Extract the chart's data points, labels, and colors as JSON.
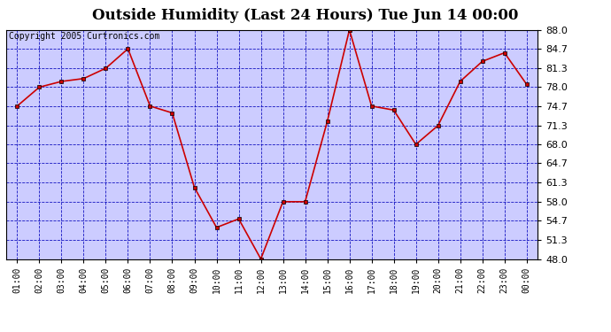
{
  "title": "Outside Humidity (Last 24 Hours) Tue Jun 14 00:00",
  "copyright": "Copyright 2005 Curtronics.com",
  "x_labels": [
    "01:00",
    "02:00",
    "03:00",
    "04:00",
    "05:00",
    "06:00",
    "07:00",
    "08:00",
    "09:00",
    "10:00",
    "11:00",
    "12:00",
    "13:00",
    "14:00",
    "15:00",
    "16:00",
    "17:00",
    "18:00",
    "19:00",
    "20:00",
    "21:00",
    "22:00",
    "23:00",
    "00:00"
  ],
  "x_values": [
    1,
    2,
    3,
    4,
    5,
    6,
    7,
    8,
    9,
    10,
    11,
    12,
    13,
    14,
    15,
    16,
    17,
    18,
    19,
    20,
    21,
    22,
    23,
    24
  ],
  "y_values": [
    74.7,
    78.0,
    79.0,
    79.5,
    81.3,
    84.7,
    74.7,
    73.5,
    60.5,
    53.5,
    55.0,
    48.0,
    58.0,
    58.0,
    72.0,
    88.0,
    74.7,
    74.0,
    68.0,
    71.3,
    79.0,
    82.5,
    84.0,
    78.5
  ],
  "y_ticks": [
    48.0,
    51.3,
    54.7,
    58.0,
    61.3,
    64.7,
    68.0,
    71.3,
    74.7,
    78.0,
    81.3,
    84.7,
    88.0
  ],
  "ylim": [
    48.0,
    88.0
  ],
  "line_color": "#cc0000",
  "marker_color": "#cc0000",
  "plot_bg_color": "#ccccff",
  "grid_color": "#0000bb",
  "title_fontsize": 12,
  "copyright_fontsize": 7
}
